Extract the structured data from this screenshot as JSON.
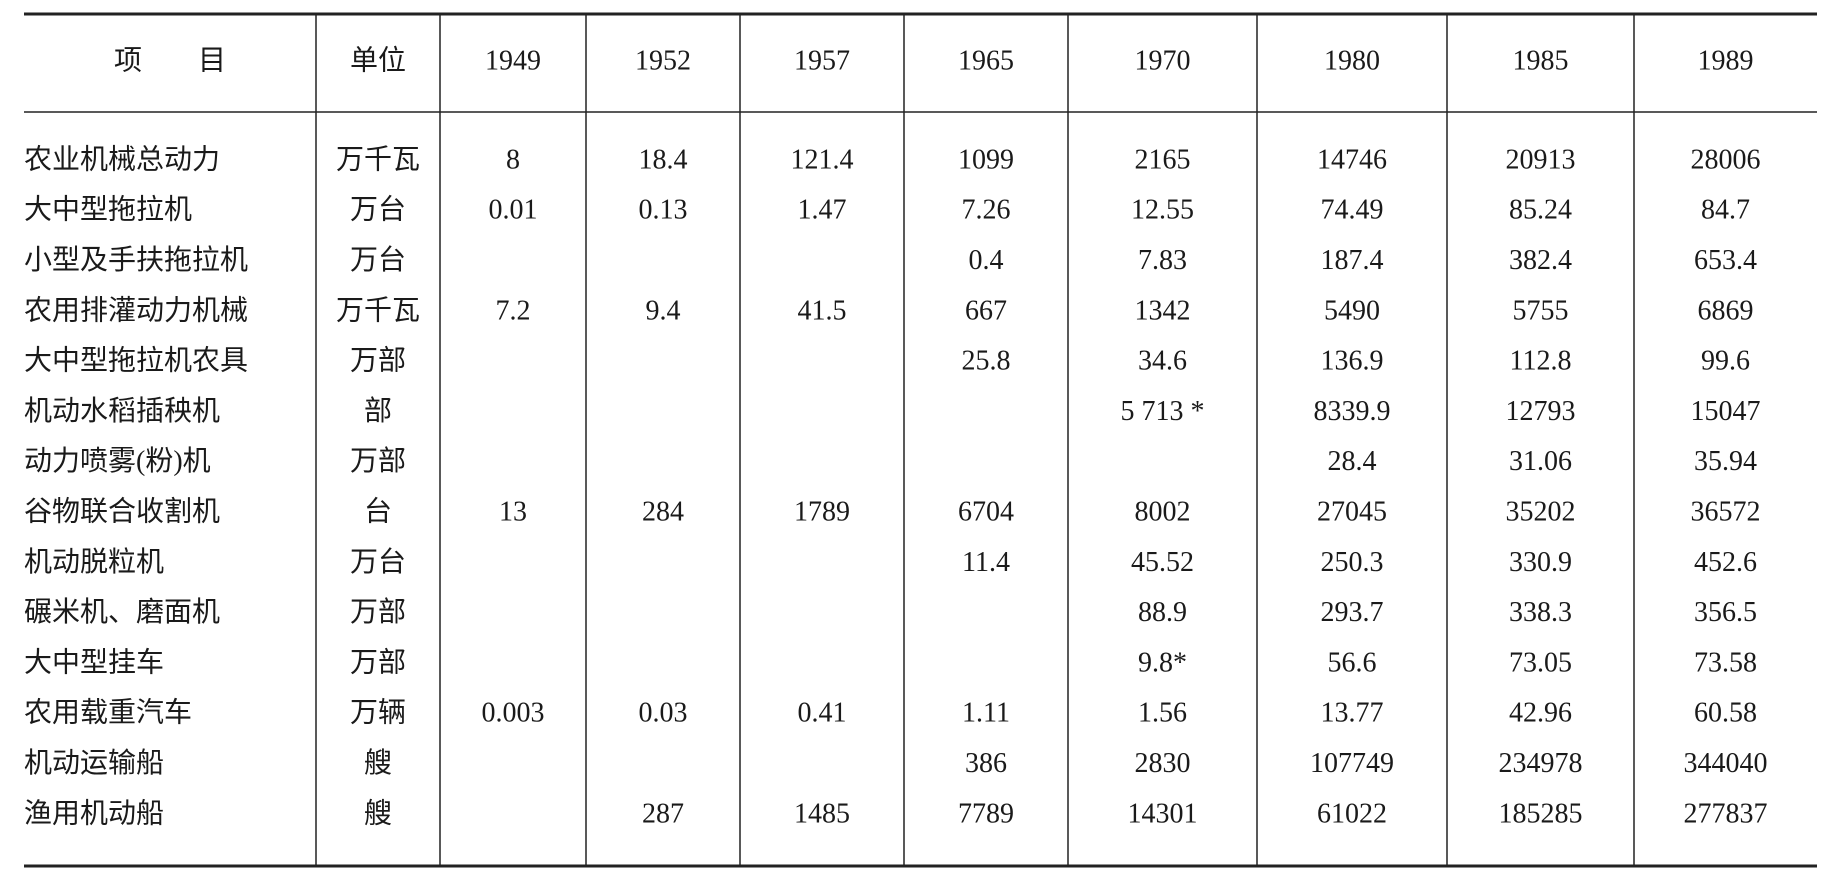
{
  "table": {
    "header": [
      "项　　目",
      "单位",
      "1949",
      "1952",
      "1957",
      "1965",
      "1970",
      "1980",
      "1985",
      "1989"
    ],
    "rows": [
      [
        "农业机械总动力",
        "万千瓦",
        "8",
        "18.4",
        "121.4",
        "1099",
        "2165",
        "14746",
        "20913",
        "28006"
      ],
      [
        "大中型拖拉机",
        "万台",
        "0.01",
        "0.13",
        "1.47",
        "7.26",
        "12.55",
        "74.49",
        "85.24",
        "84.7"
      ],
      [
        "小型及手扶拖拉机",
        "万台",
        null,
        null,
        null,
        "0.4",
        "7.83",
        "187.4",
        "382.4",
        "653.4"
      ],
      [
        "农用排灌动力机械",
        "万千瓦",
        "7.2",
        "9.4",
        "41.5",
        "667",
        "1342",
        "5490",
        "5755",
        "6869"
      ],
      [
        "大中型拖拉机农具",
        "万部",
        null,
        null,
        null,
        "25.8",
        "34.6",
        "136.9",
        "112.8",
        "99.6"
      ],
      [
        "机动水稻插秧机",
        "部",
        null,
        null,
        null,
        null,
        "5 713 *",
        "8339.9",
        "12793",
        "15047"
      ],
      [
        "动力喷雾(粉)机",
        "万部",
        null,
        null,
        null,
        null,
        null,
        "28.4",
        "31.06",
        "35.94"
      ],
      [
        "谷物联合收割机",
        "台",
        "13",
        "284",
        "1789",
        "6704",
        "8002",
        "27045",
        "35202",
        "36572"
      ],
      [
        "机动脱粒机",
        "万台",
        null,
        null,
        null,
        "11.4",
        "45.52",
        "250.3",
        "330.9",
        "452.6"
      ],
      [
        "碾米机、磨面机",
        "万部",
        null,
        null,
        null,
        null,
        "88.9",
        "293.7",
        "338.3",
        "356.5"
      ],
      [
        "大中型挂车",
        "万部",
        null,
        null,
        null,
        null,
        "9.8*",
        "56.6",
        "73.05",
        "73.58"
      ],
      [
        "农用载重汽车",
        "万辆",
        "0.003",
        "0.03",
        "0.41",
        "1.11",
        "1.56",
        "13.77",
        "42.96",
        "60.58"
      ],
      [
        "机动运输船",
        "艘",
        null,
        null,
        null,
        "386",
        "2830",
        "107749",
        "234978",
        "344040"
      ],
      [
        "渔用机动船",
        "艘",
        null,
        "287",
        "1485",
        "7789",
        "14301",
        "61022",
        "185285",
        "277837"
      ]
    ]
  }
}
